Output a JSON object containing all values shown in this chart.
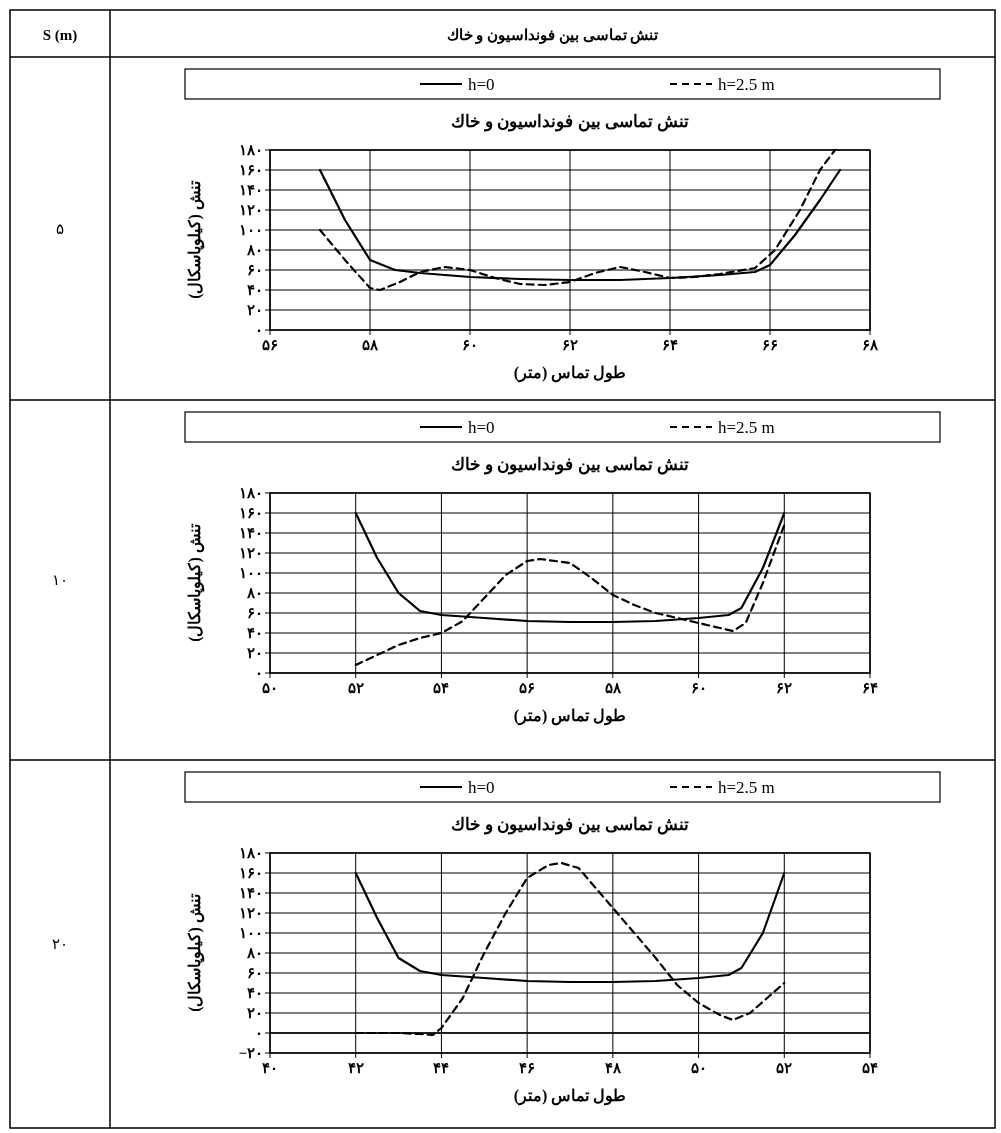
{
  "chart_data": [
    {
      "type": "line",
      "title": "تنش تماسی بین فونداسیون و خاك",
      "xlabel": "طول تماس (متر)",
      "ylabel": "تنش (کیلوپاسکال)",
      "annotations": [
        "S (m)",
        "تنش تماسی بین فونداسیون و خاك",
        "۵"
      ],
      "legend": "top",
      "grid": true,
      "xlim": [
        56,
        68
      ],
      "xticks": [
        {
          "value": 56,
          "label": "۵۶"
        },
        {
          "value": 58,
          "label": "۵۸"
        },
        {
          "value": 60,
          "label": "۶۰"
        },
        {
          "value": 62,
          "label": "۶۲"
        },
        {
          "value": 64,
          "label": "۶۴"
        },
        {
          "value": 66,
          "label": "۶۶"
        },
        {
          "value": 68,
          "label": "۶۸"
        }
      ],
      "ylim": [
        0,
        180
      ],
      "yticks": [
        {
          "value": 0,
          "label": "۰"
        },
        {
          "value": 20,
          "label": "۲۰"
        },
        {
          "value": 40,
          "label": "۴۰"
        },
        {
          "value": 60,
          "label": "۶۰"
        },
        {
          "value": 80,
          "label": "۸۰"
        },
        {
          "value": 100,
          "label": "۱۰۰"
        },
        {
          "value": 120,
          "label": "۱۲۰"
        },
        {
          "value": 140,
          "label": "۱۴۰"
        },
        {
          "value": 160,
          "label": "۱۶۰"
        },
        {
          "value": 180,
          "label": "۱۸۰"
        }
      ],
      "series": [
        {
          "name": "h=0",
          "color": "#000000",
          "line_style": "solid",
          "x": [
            57,
            57.5,
            58,
            58.5,
            59,
            60,
            61,
            62,
            63,
            64,
            65,
            65.7,
            66,
            66.5,
            67,
            67.4
          ],
          "values": [
            160,
            110,
            70,
            60,
            57,
            53,
            51,
            50,
            50,
            52,
            55,
            58,
            65,
            95,
            130,
            160
          ]
        },
        {
          "name": "h=2.5 m",
          "color": "#000000",
          "line_style": "dashed",
          "x": [
            57,
            57.5,
            58,
            58.2,
            58.6,
            59,
            59.5,
            60,
            60.5,
            61,
            61.5,
            62,
            62.5,
            63,
            63.5,
            64,
            64.5,
            65,
            65.7,
            66.1,
            66.6,
            67,
            67.3
          ],
          "values": [
            100,
            70,
            42,
            40,
            48,
            58,
            63,
            60,
            52,
            46,
            45,
            48,
            57,
            63,
            58,
            52,
            53,
            56,
            62,
            80,
            120,
            160,
            180
          ]
        }
      ]
    },
    {
      "type": "line",
      "title": "تنش تماسی بین فونداسیون و خاك",
      "xlabel": "طول تماس (متر)",
      "ylabel": "تنش (کیلوپاسکال)",
      "annotations": [
        "۱۰"
      ],
      "legend": "top",
      "grid": true,
      "xlim": [
        50,
        64
      ],
      "xticks": [
        {
          "value": 50,
          "label": "۵۰"
        },
        {
          "value": 52,
          "label": "۵۲"
        },
        {
          "value": 54,
          "label": "۵۴"
        },
        {
          "value": 56,
          "label": "۵۶"
        },
        {
          "value": 58,
          "label": "۵۸"
        },
        {
          "value": 60,
          "label": "۶۰"
        },
        {
          "value": 62,
          "label": "۶۲"
        },
        {
          "value": 64,
          "label": "۶۴"
        }
      ],
      "ylim": [
        0,
        180
      ],
      "yticks": [
        {
          "value": 0,
          "label": "۰"
        },
        {
          "value": 20,
          "label": "۲۰"
        },
        {
          "value": 40,
          "label": "۴۰"
        },
        {
          "value": 60,
          "label": "۶۰"
        },
        {
          "value": 80,
          "label": "۸۰"
        },
        {
          "value": 100,
          "label": "۱۰۰"
        },
        {
          "value": 120,
          "label": "۱۲۰"
        },
        {
          "value": 140,
          "label": "۱۴۰"
        },
        {
          "value": 160,
          "label": "۱۶۰"
        },
        {
          "value": 180,
          "label": "۱۸۰"
        }
      ],
      "series": [
        {
          "name": "h=0",
          "color": "#000000",
          "line_style": "solid",
          "x": [
            52,
            52.5,
            53,
            53.5,
            54,
            55,
            56,
            57,
            58,
            59,
            60,
            60.7,
            61,
            61.5,
            62
          ],
          "values": [
            160,
            115,
            80,
            62,
            58,
            55,
            52,
            51,
            51,
            52,
            55,
            58,
            65,
            105,
            160
          ]
        },
        {
          "name": "h=2.5 m",
          "color": "#000000",
          "line_style": "dashed",
          "x": [
            52,
            52.5,
            53,
            53.5,
            54,
            54.5,
            55,
            55.5,
            56,
            56.3,
            57,
            57.5,
            58,
            58.5,
            59,
            60,
            60.5,
            60.8,
            61.1,
            61.5,
            62
          ],
          "values": [
            8,
            18,
            28,
            35,
            40,
            52,
            75,
            98,
            112,
            114,
            110,
            95,
            78,
            68,
            60,
            50,
            45,
            42,
            50,
            90,
            148
          ]
        }
      ]
    },
    {
      "type": "line",
      "title": "تنش تماسی بین فونداسیون و خاك",
      "xlabel": "طول تماس (متر)",
      "ylabel": "تنش (کیلوپاسکال)",
      "annotations": [
        "۲۰"
      ],
      "legend": "top",
      "grid": true,
      "xlim": [
        40,
        54
      ],
      "xticks": [
        {
          "value": 40,
          "label": "۴۰"
        },
        {
          "value": 42,
          "label": "۴۲"
        },
        {
          "value": 44,
          "label": "۴۴"
        },
        {
          "value": 46,
          "label": "۴۶"
        },
        {
          "value": 48,
          "label": "۴۸"
        },
        {
          "value": 50,
          "label": "۵۰"
        },
        {
          "value": 52,
          "label": "۵۲"
        },
        {
          "value": 54,
          "label": "۵۴"
        }
      ],
      "ylim": [
        -20,
        180
      ],
      "yticks": [
        {
          "value": -20,
          "label": "−۲۰"
        },
        {
          "value": 0,
          "label": "۰"
        },
        {
          "value": 20,
          "label": "۲۰"
        },
        {
          "value": 40,
          "label": "۴۰"
        },
        {
          "value": 60,
          "label": "۶۰"
        },
        {
          "value": 80,
          "label": "۸۰"
        },
        {
          "value": 100,
          "label": "۱۰۰"
        },
        {
          "value": 120,
          "label": "۱۲۰"
        },
        {
          "value": 140,
          "label": "۱۴۰"
        },
        {
          "value": 160,
          "label": "۱۶۰"
        },
        {
          "value": 180,
          "label": "۱۸۰"
        }
      ],
      "ref_lines": [
        {
          "axis": "y",
          "value": 0
        }
      ],
      "series": [
        {
          "name": "h=0",
          "color": "#000000",
          "line_style": "solid",
          "x": [
            42,
            42.5,
            43,
            43.5,
            44,
            45,
            46,
            47,
            48,
            49,
            50,
            50.7,
            51,
            51.5,
            52
          ],
          "values": [
            160,
            115,
            75,
            62,
            58,
            55,
            52,
            51,
            51,
            52,
            55,
            58,
            65,
            100,
            160
          ]
        },
        {
          "name": "h=2.5 m",
          "color": "#000000",
          "line_style": "dashed",
          "x": [
            42,
            43,
            43.5,
            43.8,
            44,
            44.5,
            45,
            45.5,
            46,
            46.5,
            46.8,
            47.2,
            47.7,
            48.5,
            49,
            49.5,
            50,
            50.5,
            50.8,
            51.2,
            51.6,
            52
          ],
          "values": [
            0,
            0,
            -1,
            -2,
            5,
            35,
            80,
            120,
            155,
            168,
            170,
            165,
            140,
            100,
            75,
            48,
            30,
            18,
            13,
            20,
            35,
            50
          ]
        }
      ]
    }
  ]
}
